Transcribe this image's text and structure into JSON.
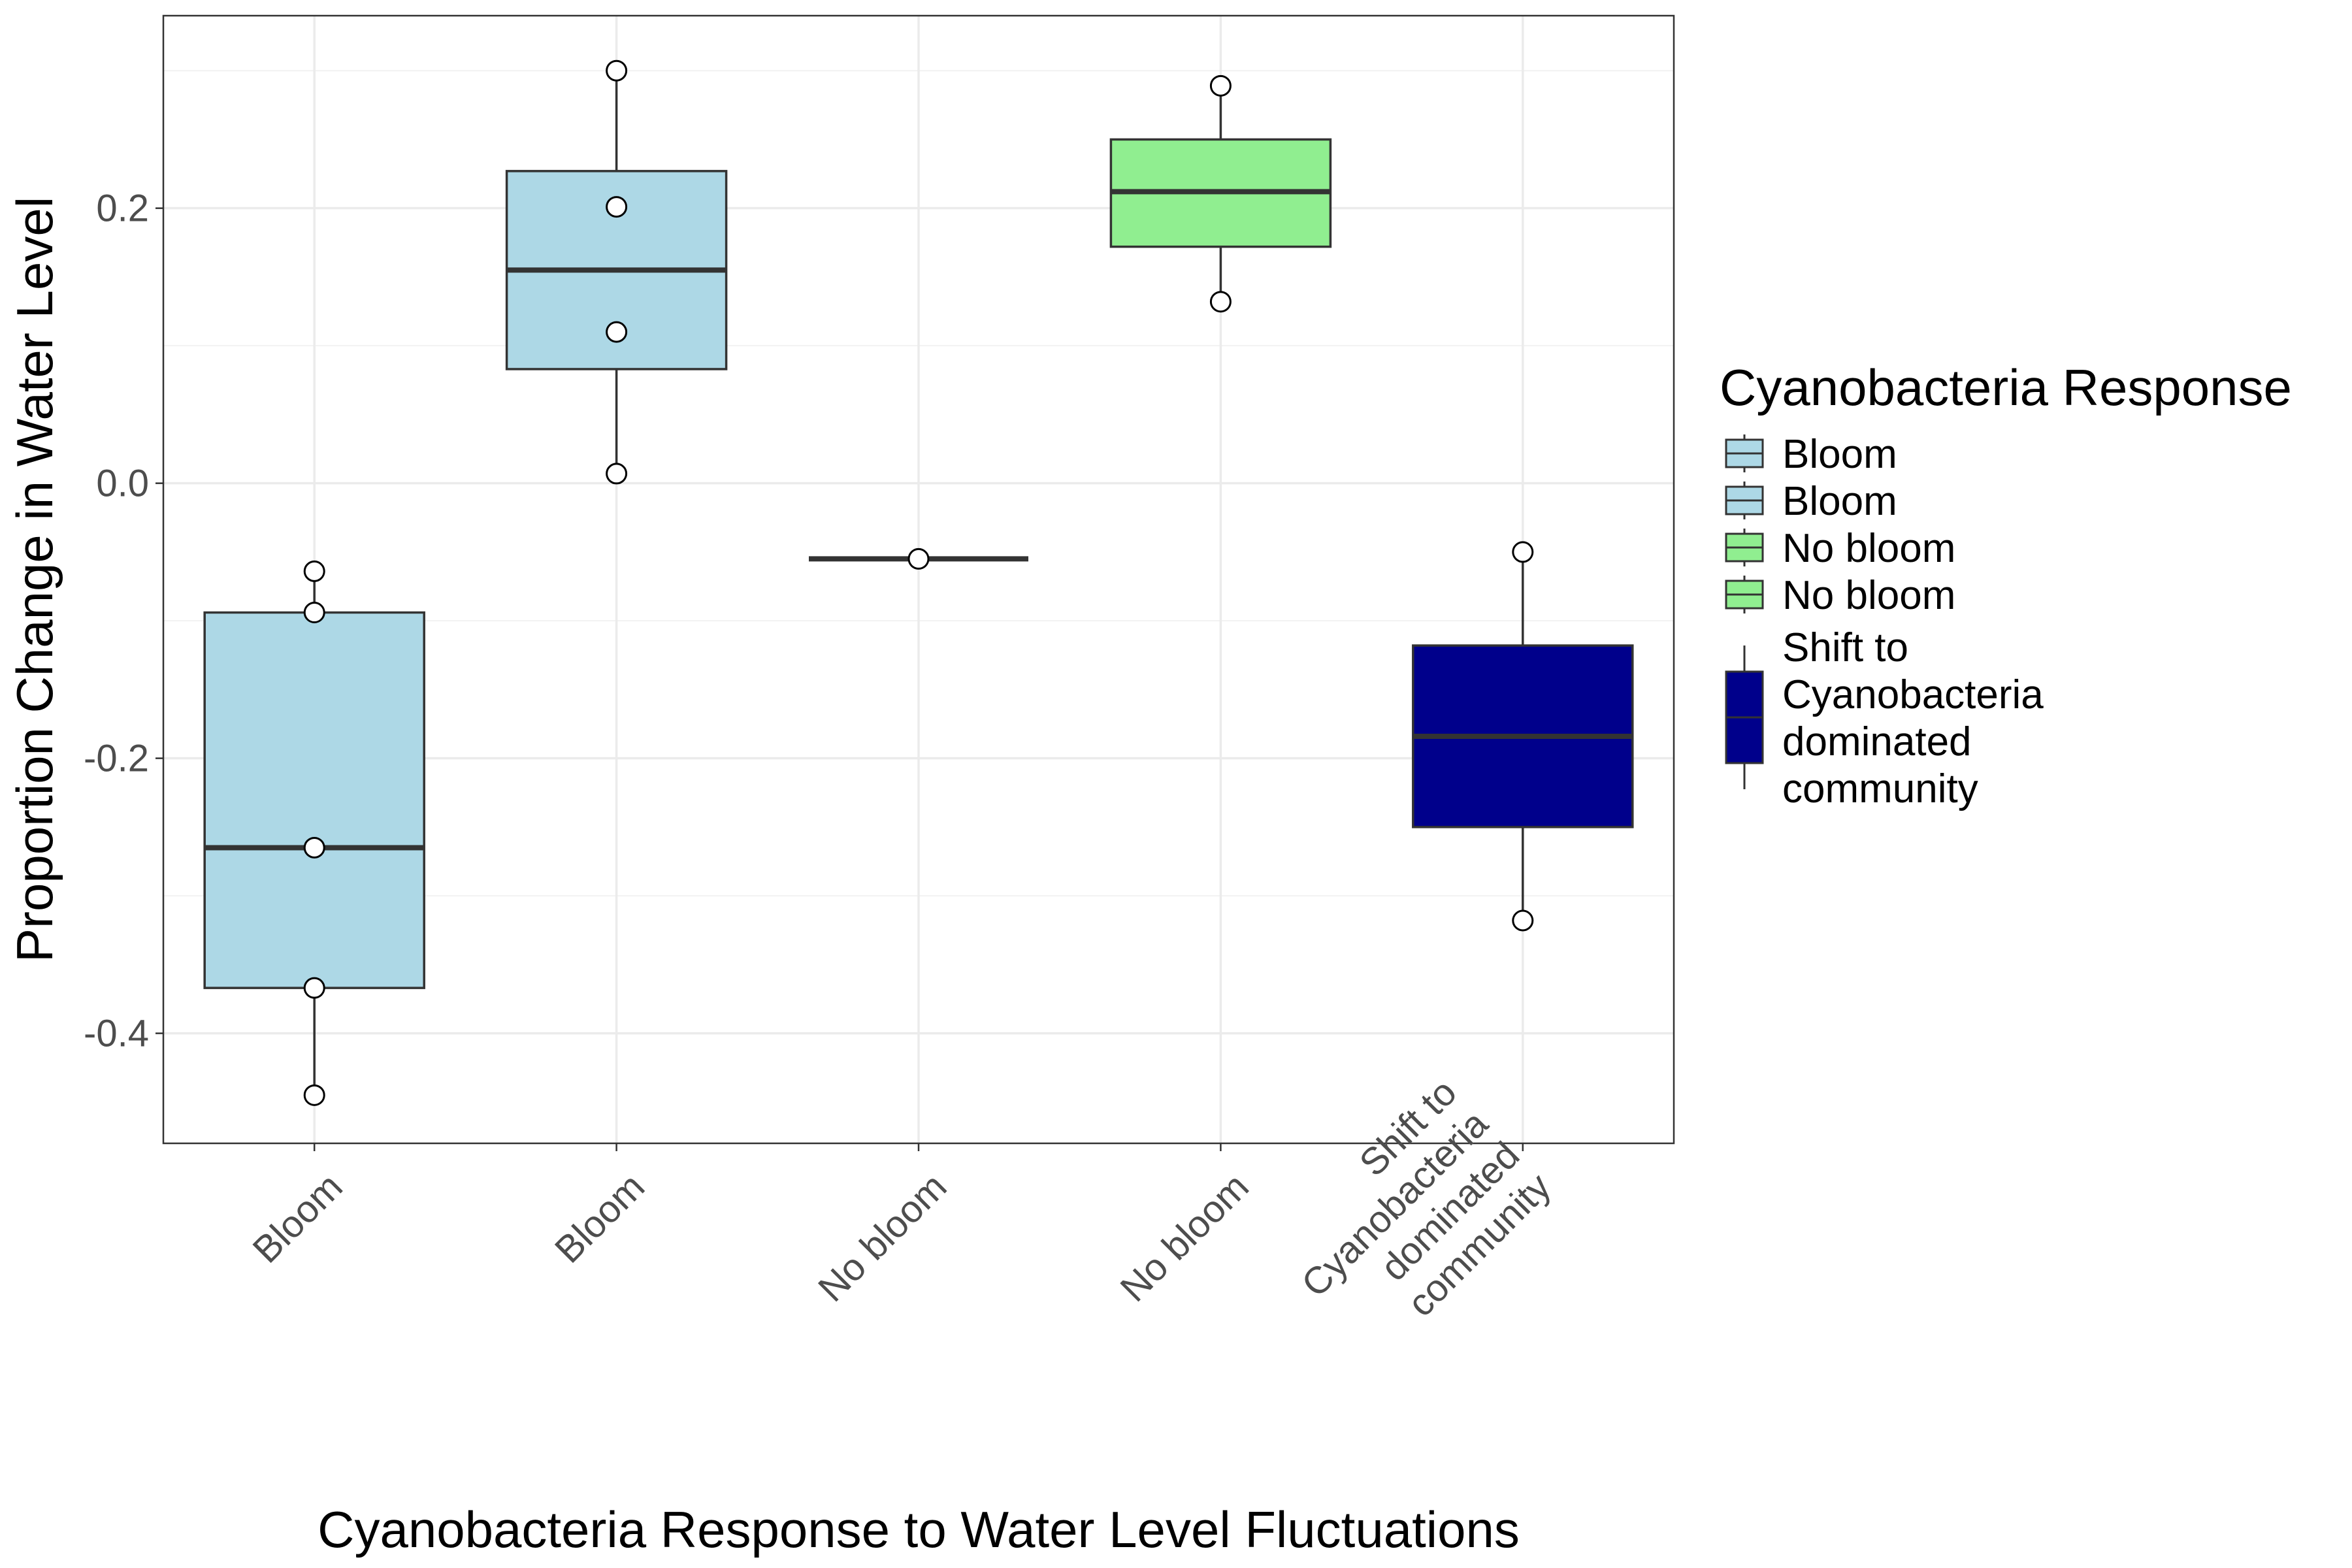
{
  "chart_data": {
    "type": "box",
    "xlabel": "Cyanobacteria Response to Water Level Fluctuations",
    "ylabel": "Proportion Change in Water Level",
    "ylim": [
      -0.48,
      0.34
    ],
    "yticks": [
      -0.4,
      -0.2,
      0.0,
      0.2
    ],
    "ytick_labels": [
      "-0.4",
      "-0.2",
      "0.0",
      "0.2"
    ],
    "grid": true,
    "legend_placement": "right",
    "categories": [
      {
        "lines": [
          "Bloom"
        ]
      },
      {
        "lines": [
          "Bloom"
        ]
      },
      {
        "lines": [
          "No bloom"
        ]
      },
      {
        "lines": [
          "No bloom"
        ]
      },
      {
        "lines": [
          "Shift to",
          "Cyanobacteria",
          "dominated",
          "community"
        ]
      }
    ],
    "boxes": [
      {
        "group": "Bloom",
        "color": "#add8e6",
        "whisker_low": -0.445,
        "q1": -0.367,
        "median": -0.265,
        "q3": -0.094,
        "whisker_high": -0.064,
        "points": [
          -0.445,
          -0.367,
          -0.265,
          -0.094,
          -0.064
        ]
      },
      {
        "group": "Bloom",
        "color": "#add8e6",
        "whisker_low": 0.007,
        "q1": 0.083,
        "median": 0.155,
        "q3": 0.227,
        "whisker_high": 0.3,
        "points": [
          0.007,
          0.11,
          0.201,
          0.3
        ]
      },
      {
        "group": "No bloom",
        "color": "#90ee90",
        "whisker_low": -0.055,
        "q1": -0.055,
        "median": -0.055,
        "q3": -0.055,
        "whisker_high": -0.055,
        "points": [
          -0.055
        ]
      },
      {
        "group": "No bloom",
        "color": "#90ee90",
        "whisker_low": 0.132,
        "q1": 0.172,
        "median": 0.212,
        "q3": 0.25,
        "whisker_high": 0.289,
        "points": [
          0.132,
          0.289
        ]
      },
      {
        "group": "Shift to Cyanobacteria dominated community",
        "color": "#00008b",
        "whisker_low": -0.318,
        "q1": -0.25,
        "median": -0.184,
        "q3": -0.118,
        "whisker_high": -0.05,
        "points": [
          -0.318,
          -0.05
        ]
      }
    ],
    "legend": {
      "title": "Cyanobacteria Response",
      "entries": [
        {
          "lines": [
            "Bloom"
          ],
          "color": "#add8e6"
        },
        {
          "lines": [
            "Bloom"
          ],
          "color": "#add8e6"
        },
        {
          "lines": [
            "No bloom"
          ],
          "color": "#90ee90"
        },
        {
          "lines": [
            "No bloom"
          ],
          "color": "#90ee90"
        },
        {
          "lines": [
            "Shift to",
            " Cyanobacteria",
            " dominated",
            " community"
          ],
          "color": "#00008b"
        }
      ]
    }
  }
}
